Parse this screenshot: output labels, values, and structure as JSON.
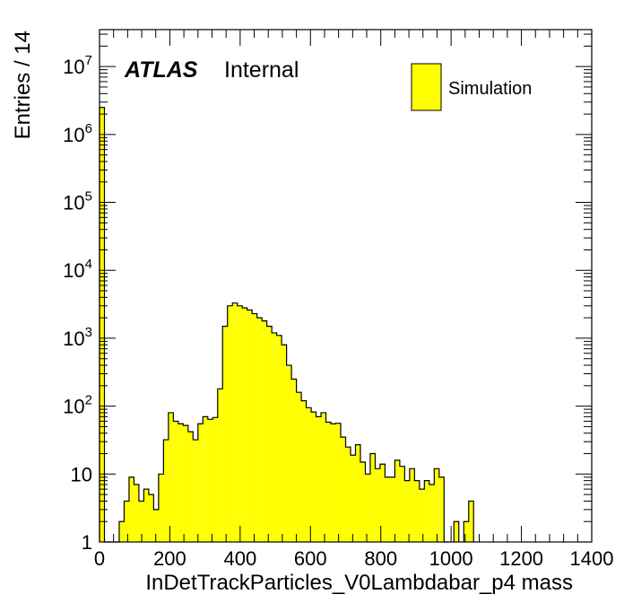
{
  "chart_data": {
    "type": "bar",
    "xlabel": "InDetTrackParticles_V0Lambdabar_p4 mass",
    "ylabel": "Entries / 14",
    "xlim": [
      0,
      1400
    ],
    "ylim": [
      1,
      35000000.0
    ],
    "yscale": "log",
    "bin_width": 14,
    "x_ticks": [
      "0",
      "200",
      "400",
      "600",
      "800",
      "1000",
      "1200",
      "1400"
    ],
    "y_ticks": [
      {
        "base": "1",
        "exp": ""
      },
      {
        "base": "10",
        "exp": ""
      },
      {
        "base": "10",
        "exp": "2"
      },
      {
        "base": "10",
        "exp": "3"
      },
      {
        "base": "10",
        "exp": "4"
      },
      {
        "base": "10",
        "exp": "5"
      },
      {
        "base": "10",
        "exp": "6"
      },
      {
        "base": "10",
        "exp": "7"
      }
    ],
    "fill_color": "#ffff00",
    "line_color": "#000000",
    "series": [
      {
        "name": "Simulation",
        "bins": [
          [
            0,
            2500000
          ],
          [
            14,
            1
          ],
          [
            28,
            1
          ],
          [
            42,
            1
          ],
          [
            56,
            2
          ],
          [
            70,
            4
          ],
          [
            84,
            9
          ],
          [
            98,
            7
          ],
          [
            112,
            4
          ],
          [
            126,
            6
          ],
          [
            140,
            5
          ],
          [
            154,
            3
          ],
          [
            168,
            10
          ],
          [
            182,
            32
          ],
          [
            196,
            80
          ],
          [
            210,
            60
          ],
          [
            224,
            55
          ],
          [
            238,
            52
          ],
          [
            252,
            42
          ],
          [
            266,
            32
          ],
          [
            280,
            55
          ],
          [
            294,
            70
          ],
          [
            308,
            64
          ],
          [
            322,
            68
          ],
          [
            336,
            180
          ],
          [
            350,
            1500
          ],
          [
            364,
            3000
          ],
          [
            378,
            3300
          ],
          [
            392,
            3000
          ],
          [
            406,
            2800
          ],
          [
            420,
            2600
          ],
          [
            434,
            2300
          ],
          [
            448,
            2000
          ],
          [
            462,
            1800
          ],
          [
            476,
            1500
          ],
          [
            490,
            1200
          ],
          [
            504,
            1100
          ],
          [
            518,
            800
          ],
          [
            532,
            400
          ],
          [
            546,
            250
          ],
          [
            560,
            160
          ],
          [
            574,
            120
          ],
          [
            588,
            95
          ],
          [
            602,
            82
          ],
          [
            616,
            70
          ],
          [
            630,
            80
          ],
          [
            644,
            58
          ],
          [
            658,
            55
          ],
          [
            672,
            56
          ],
          [
            686,
            35
          ],
          [
            700,
            25
          ],
          [
            714,
            19
          ],
          [
            728,
            27
          ],
          [
            742,
            15
          ],
          [
            756,
            10
          ],
          [
            770,
            20
          ],
          [
            784,
            12
          ],
          [
            798,
            14
          ],
          [
            812,
            9
          ],
          [
            826,
            9
          ],
          [
            840,
            16
          ],
          [
            854,
            13
          ],
          [
            868,
            8
          ],
          [
            882,
            12
          ],
          [
            896,
            8
          ],
          [
            910,
            6
          ],
          [
            924,
            8
          ],
          [
            938,
            7
          ],
          [
            952,
            12
          ],
          [
            966,
            9
          ],
          [
            980,
            1
          ],
          [
            994,
            0
          ],
          [
            1008,
            2
          ],
          [
            1022,
            0
          ],
          [
            1036,
            2
          ],
          [
            1050,
            4
          ],
          [
            1064,
            0
          ]
        ]
      }
    ],
    "annotations": [
      {
        "bold": "ATLAS",
        "text": "Internal"
      }
    ],
    "legend": {
      "position": "top-right",
      "entries": [
        "Simulation"
      ]
    }
  }
}
